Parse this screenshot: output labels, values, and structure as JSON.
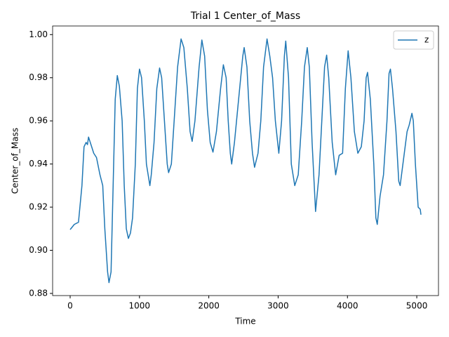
{
  "chart_data": {
    "type": "line",
    "title": "Trial 1 Center_of_Mass",
    "x_label": "Time",
    "y_label": "Center_of_Mass",
    "xlim": [
      -253,
      5313
    ],
    "ylim": [
      0.879,
      1.004
    ],
    "xticks": [
      0,
      1000,
      2000,
      3000,
      4000,
      5000
    ],
    "yticks": [
      0.88,
      {
        "value": 0.9,
        "label": "0.90"
      },
      0.92,
      0.94,
      0.96,
      0.98,
      {
        "value": 1.0,
        "label": "1.00"
      }
    ],
    "legend": "upper right",
    "series": [
      {
        "name": "z",
        "color": "#1f77b4",
        "x": [
          0,
          60,
          120,
          170,
          200,
          230,
          250,
          265,
          280,
          310,
          340,
          380,
          430,
          470,
          500,
          540,
          560,
          590,
          620,
          650,
          680,
          710,
          750,
          780,
          810,
          840,
          870,
          900,
          940,
          970,
          1000,
          1030,
          1070,
          1100,
          1150,
          1170,
          1210,
          1250,
          1290,
          1320,
          1360,
          1400,
          1420,
          1460,
          1500,
          1550,
          1600,
          1640,
          1690,
          1730,
          1760,
          1800,
          1860,
          1900,
          1940,
          1980,
          2020,
          2060,
          2110,
          2170,
          2210,
          2250,
          2280,
          2310,
          2330,
          2370,
          2430,
          2490,
          2510,
          2550,
          2590,
          2630,
          2660,
          2710,
          2750,
          2790,
          2840,
          2880,
          2920,
          2960,
          3010,
          3050,
          3090,
          3110,
          3150,
          3190,
          3240,
          3290,
          3340,
          3380,
          3420,
          3450,
          3490,
          3540,
          3590,
          3630,
          3670,
          3700,
          3730,
          3780,
          3830,
          3880,
          3930,
          3970,
          4010,
          4050,
          4100,
          4150,
          4200,
          4240,
          4270,
          4290,
          4330,
          4380,
          4410,
          4430,
          4470,
          4520,
          4570,
          4600,
          4620,
          4650,
          4700,
          4740,
          4760,
          4800,
          4860,
          4890,
          4930,
          4950,
          4980,
          5020,
          5050,
          5060
        ],
        "values": [
          0.9096,
          0.912,
          0.913,
          0.93,
          0.948,
          0.95,
          0.949,
          0.9525,
          0.951,
          0.948,
          0.945,
          0.943,
          0.935,
          0.93,
          0.91,
          0.89,
          0.885,
          0.89,
          0.93,
          0.97,
          0.981,
          0.976,
          0.96,
          0.93,
          0.91,
          0.9055,
          0.908,
          0.915,
          0.94,
          0.975,
          0.984,
          0.98,
          0.96,
          0.94,
          0.93,
          0.935,
          0.95,
          0.975,
          0.9845,
          0.98,
          0.96,
          0.94,
          0.936,
          0.94,
          0.96,
          0.985,
          0.998,
          0.994,
          0.975,
          0.955,
          0.9505,
          0.96,
          0.985,
          0.9975,
          0.99,
          0.965,
          0.95,
          0.9455,
          0.955,
          0.975,
          0.986,
          0.98,
          0.96,
          0.945,
          0.94,
          0.95,
          0.97,
          0.99,
          0.994,
          0.985,
          0.96,
          0.945,
          0.9385,
          0.945,
          0.96,
          0.985,
          0.998,
          0.99,
          0.98,
          0.96,
          0.945,
          0.96,
          0.99,
          0.997,
          0.98,
          0.94,
          0.93,
          0.935,
          0.96,
          0.985,
          0.994,
          0.985,
          0.95,
          0.918,
          0.935,
          0.96,
          0.985,
          0.9905,
          0.98,
          0.95,
          0.935,
          0.944,
          0.945,
          0.975,
          0.9925,
          0.98,
          0.955,
          0.945,
          0.948,
          0.96,
          0.98,
          0.9825,
          0.97,
          0.94,
          0.915,
          0.912,
          0.925,
          0.935,
          0.96,
          0.982,
          0.984,
          0.975,
          0.955,
          0.932,
          0.93,
          0.94,
          0.955,
          0.958,
          0.9635,
          0.96,
          0.94,
          0.92,
          0.919,
          0.9165
        ]
      }
    ]
  }
}
